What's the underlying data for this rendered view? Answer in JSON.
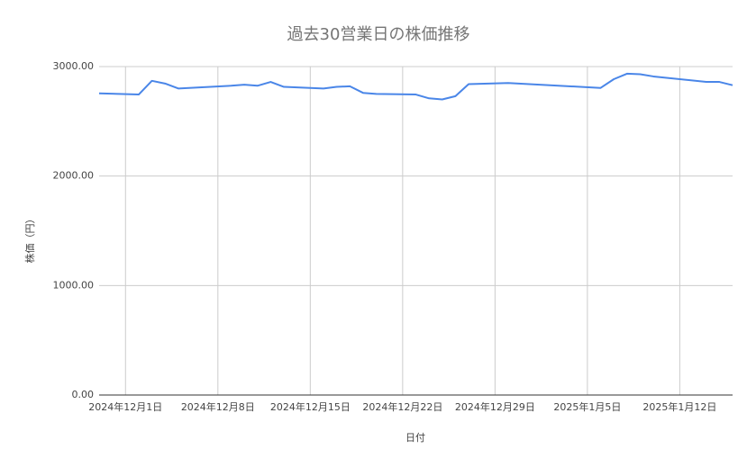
{
  "chart_data": {
    "type": "line",
    "title": "過去30営業日の株価推移",
    "x_label": "日付",
    "y_label": "株価（円）",
    "x": [
      "2024-11-29",
      "2024-12-02",
      "2024-12-03",
      "2024-12-04",
      "2024-12-05",
      "2024-12-09",
      "2024-12-10",
      "2024-12-11",
      "2024-12-12",
      "2024-12-13",
      "2024-12-16",
      "2024-12-17",
      "2024-12-18",
      "2024-12-19",
      "2024-12-20",
      "2024-12-23",
      "2024-12-24",
      "2024-12-25",
      "2024-12-26",
      "2024-12-27",
      "2024-12-30",
      "2025-01-06",
      "2025-01-07",
      "2025-01-08",
      "2025-01-09",
      "2025-01-10",
      "2025-01-14",
      "2025-01-15",
      "2025-01-16"
    ],
    "series": [
      {
        "name": "株価",
        "color": "#4a86e8",
        "values": [
          2755,
          2745,
          2870,
          2845,
          2800,
          2825,
          2835,
          2825,
          2860,
          2815,
          2800,
          2815,
          2820,
          2760,
          2750,
          2745,
          2710,
          2700,
          2730,
          2840,
          2850,
          2805,
          2885,
          2935,
          2930,
          2910,
          2860,
          2860,
          2830
        ]
      }
    ],
    "xlim": [
      "2024-11-29",
      "2025-01-16"
    ],
    "xticks": [
      {
        "value": "2024-12-01",
        "label": "2024年12月1日"
      },
      {
        "value": "2024-12-08",
        "label": "2024年12月8日"
      },
      {
        "value": "2024-12-15",
        "label": "2024年12月15日"
      },
      {
        "value": "2024-12-22",
        "label": "2024年12月22日"
      },
      {
        "value": "2024-12-29",
        "label": "2024年12月29日"
      },
      {
        "value": "2025-01-05",
        "label": "2025年1月5日"
      },
      {
        "value": "2025-01-12",
        "label": "2025年1月12日"
      }
    ],
    "ylim": [
      0,
      3000
    ],
    "yticks": [
      {
        "value": 0,
        "label": "0.00"
      },
      {
        "value": 1000,
        "label": "1000.00"
      },
      {
        "value": 2000,
        "label": "2000.00"
      },
      {
        "value": 3000,
        "label": "3000.00"
      }
    ],
    "grid": true
  }
}
